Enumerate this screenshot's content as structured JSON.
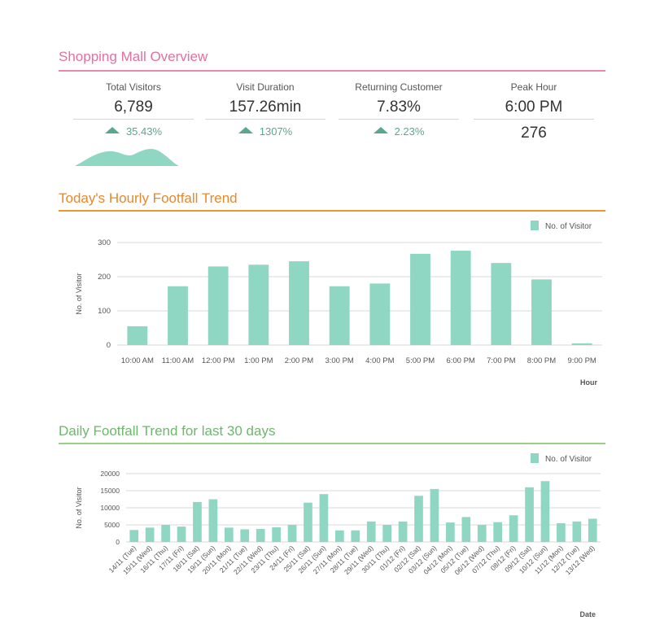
{
  "dashboard": {
    "title": "Shopping Mall Overview",
    "kpis": [
      {
        "label": "Total Visitors",
        "value": "6,789",
        "delta": "35.43%"
      },
      {
        "label": "Visit Duration",
        "value": "157.26min",
        "delta": "1307%"
      },
      {
        "label": "Returning Customer",
        "value": "7.83%",
        "delta": "2.23%"
      },
      {
        "label": "Peak Hour",
        "value": "6:00 PM",
        "sub_value": "276"
      }
    ],
    "hourly_title": "Today's Hourly Footfall Trend",
    "daily_title": "Daily Footfall Trend for last 30 days"
  },
  "colors": {
    "bar": "#8fd6c3",
    "overview_rule": "#e889b0",
    "overview_title": "#e56fa0",
    "hourly_rule": "#f0962e",
    "hourly_title": "#e8882a",
    "daily_rule": "#9ccf86",
    "daily_title": "#6fb66f",
    "delta": "#5aa88b"
  },
  "chart_data": [
    {
      "type": "bar",
      "title": "Today's Hourly Footfall Trend",
      "xlabel": "Hour",
      "ylabel": "No. of Visitor",
      "ylim": [
        0,
        300
      ],
      "yticks": [
        0,
        100,
        200,
        300
      ],
      "grid": true,
      "legend": "top-right",
      "categories": [
        "10:00 AM",
        "11:00 AM",
        "12:00 PM",
        "1:00 PM",
        "2:00 PM",
        "3:00 PM",
        "4:00 PM",
        "5:00 PM",
        "6:00 PM",
        "7:00 PM",
        "8:00 PM",
        "9:00 PM"
      ],
      "series": [
        {
          "name": "No. of Visitor",
          "values": [
            55,
            172,
            230,
            235,
            245,
            172,
            180,
            267,
            276,
            240,
            192,
            5
          ]
        }
      ]
    },
    {
      "type": "bar",
      "title": "Daily Footfall Trend for last 30 days",
      "xlabel": "Date",
      "ylabel": "No. of Visitor",
      "ylim": [
        0,
        20000
      ],
      "yticks": [
        0,
        5000,
        10000,
        15000,
        20000
      ],
      "grid": true,
      "legend": "top-right",
      "categories": [
        "14/11 (Tue)",
        "15/11 (Wed)",
        "16/11 (Thu)",
        "17/11 (Fri)",
        "18/11 (Sat)",
        "19/11 (Sun)",
        "20/11 (Mon)",
        "21/11 (Tue)",
        "22/11 (Wed)",
        "23/11 (Thu)",
        "24/11 (Fri)",
        "25/11 (Sat)",
        "26/11 (Sun)",
        "27/11 (Mon)",
        "28/11 (Tue)",
        "29/11 (Wed)",
        "30/11 (Thu)",
        "01/12 (Fri)",
        "02/12 (Sat)",
        "03/12 (Sun)",
        "04/12 (Mon)",
        "05/12 (Tue)",
        "06/12 (Wed)",
        "07/12 (Thu)",
        "08/12 (Fri)",
        "09/12 (Sat)",
        "10/12 (Sun)",
        "11/12 (Mon)",
        "12/12 (Tue)",
        "13/12 (Wed)"
      ],
      "series": [
        {
          "name": "No. of Visitor",
          "values": [
            3500,
            4200,
            5000,
            4500,
            11700,
            12500,
            4200,
            3700,
            3800,
            4300,
            5000,
            11500,
            14000,
            3400,
            3400,
            6000,
            5000,
            6000,
            13500,
            15500,
            5700,
            7300,
            5000,
            5800,
            7800,
            16000,
            17800,
            5500,
            6000,
            6800
          ]
        }
      ]
    }
  ]
}
